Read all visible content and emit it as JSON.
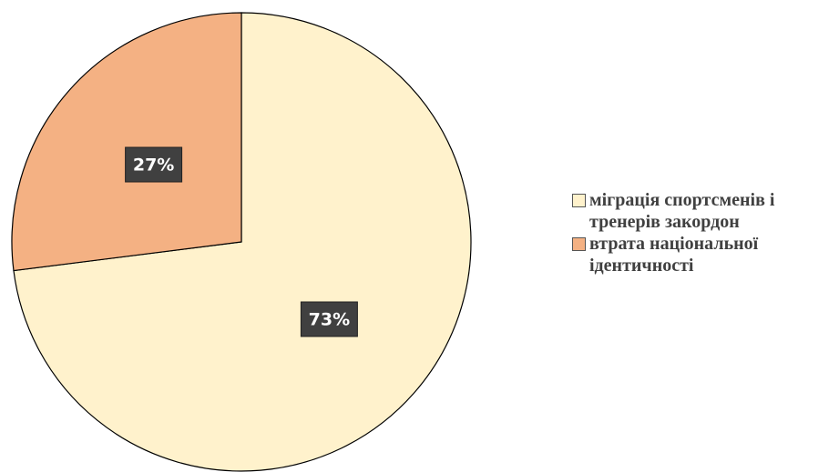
{
  "chart_data": {
    "type": "pie",
    "categories": [
      "міграція спортсменів і тренерів закордон",
      "втрата національної ідентичності"
    ],
    "values": [
      73,
      27
    ],
    "value_labels": [
      "73%",
      "27%"
    ],
    "colors": [
      "#FFF2CC",
      "#F4B183"
    ],
    "legend": "right"
  }
}
